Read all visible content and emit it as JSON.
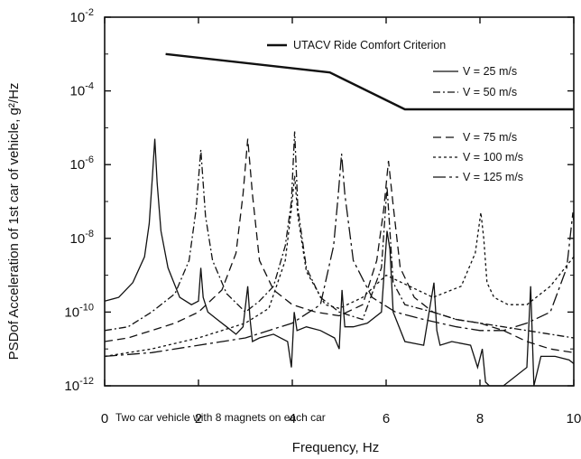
{
  "chart_data": {
    "type": "line",
    "xlabel": "Frequency, Hz",
    "ylabel": "PSDof Acceleration of 1st car of vehicle, g²/Hz",
    "x_ticks": [
      "0",
      "2",
      "4",
      "6",
      "8",
      "10"
    ],
    "y_ticks": [
      {
        "base": "10",
        "exp": "-2"
      },
      {
        "base": "10",
        "exp": "-4"
      },
      {
        "base": "10",
        "exp": "-6"
      },
      {
        "base": "10",
        "exp": "-8"
      },
      {
        "base": "10",
        "exp": "-10"
      },
      {
        "base": "10",
        "exp": "-12"
      }
    ],
    "xlim": [
      0,
      10
    ],
    "ylim_log10": [
      -12,
      -2
    ],
    "y_scale": "log",
    "grid": false,
    "legend_position": "top-right",
    "annotation": "Two car vehicle with 8 magnets on each car",
    "criterion": {
      "name": "UTACV Ride Comfort Criterion",
      "x": [
        1.3,
        4.8,
        6.4,
        10.0
      ],
      "log10_y": [
        -3.0,
        -3.5,
        -4.5,
        -4.5
      ]
    },
    "series": [
      {
        "name": "V = 25 m/s",
        "dash": "solid",
        "x": [
          0.0,
          0.3,
          0.6,
          0.85,
          0.95,
          1.02,
          1.07,
          1.12,
          1.2,
          1.35,
          1.6,
          1.85,
          2.0,
          2.05,
          2.1,
          2.2,
          2.4,
          2.6,
          2.8,
          2.95,
          3.05,
          3.1,
          3.15,
          3.3,
          3.6,
          3.9,
          3.98,
          4.04,
          4.1,
          4.3,
          4.6,
          4.9,
          5.0,
          5.06,
          5.12,
          5.3,
          5.6,
          5.9,
          6.02,
          6.08,
          6.15,
          6.4,
          6.8,
          7.02,
          7.08,
          7.15,
          7.4,
          7.8,
          7.95,
          8.05,
          8.12,
          8.2,
          8.5,
          9.0,
          9.08,
          9.15,
          9.3,
          9.6,
          9.9,
          10.0
        ],
        "log10_y": [
          -9.7,
          -9.6,
          -9.2,
          -8.5,
          -7.6,
          -6.3,
          -5.3,
          -6.5,
          -7.8,
          -8.8,
          -9.6,
          -9.8,
          -9.7,
          -8.8,
          -9.6,
          -10.0,
          -10.2,
          -10.4,
          -10.6,
          -10.4,
          -9.3,
          -10.2,
          -10.8,
          -10.7,
          -10.6,
          -10.8,
          -11.5,
          -10.0,
          -10.5,
          -10.4,
          -10.5,
          -10.7,
          -11.0,
          -9.4,
          -10.4,
          -10.4,
          -10.3,
          -10.0,
          -7.8,
          -8.3,
          -10.0,
          -10.8,
          -10.9,
          -9.2,
          -10.5,
          -10.9,
          -10.8,
          -10.9,
          -11.5,
          -11.0,
          -11.9,
          -12.0,
          -12.0,
          -11.5,
          -9.3,
          -12.0,
          -11.2,
          -11.2,
          -11.3,
          -11.4
        ]
      },
      {
        "name": "V = 50 m/s",
        "dash": "8,3,2,3",
        "x": [
          0.0,
          0.5,
          1.0,
          1.5,
          1.8,
          1.95,
          2.05,
          2.15,
          2.3,
          2.6,
          3.0,
          3.3,
          3.6,
          3.85,
          3.98,
          4.05,
          4.12,
          4.3,
          4.6,
          5.0,
          5.5,
          5.9,
          6.02,
          6.08,
          6.15,
          6.4,
          7.0,
          7.5,
          8.0,
          8.5,
          9.0,
          9.5,
          10.0
        ],
        "log10_y": [
          -10.5,
          -10.4,
          -10.0,
          -9.5,
          -8.6,
          -7.2,
          -5.6,
          -7.4,
          -8.6,
          -9.5,
          -10.0,
          -9.7,
          -9.3,
          -8.2,
          -7.0,
          -5.1,
          -7.2,
          -8.8,
          -9.6,
          -10.0,
          -10.2,
          -8.8,
          -6.6,
          -7.8,
          -9.2,
          -9.8,
          -10.0,
          -10.2,
          -10.3,
          -10.4,
          -10.5,
          -10.6,
          -10.7
        ]
      },
      {
        "name": "V = 75 m/s",
        "dash": "9,5",
        "x": [
          0.0,
          0.5,
          1.0,
          1.5,
          2.0,
          2.5,
          2.8,
          2.95,
          3.05,
          3.15,
          3.3,
          3.6,
          4.0,
          4.5,
          5.0,
          5.5,
          5.8,
          5.95,
          6.05,
          6.15,
          6.3,
          6.6,
          7.0,
          7.5,
          8.0,
          8.5,
          9.0,
          9.5,
          10.0
        ],
        "log10_y": [
          -10.8,
          -10.7,
          -10.5,
          -10.3,
          -10.0,
          -9.4,
          -8.4,
          -6.8,
          -5.3,
          -6.8,
          -8.6,
          -9.4,
          -9.8,
          -10.0,
          -10.1,
          -9.8,
          -8.6,
          -7.2,
          -5.9,
          -7.1,
          -8.8,
          -9.6,
          -10.0,
          -10.2,
          -10.3,
          -10.5,
          -10.8,
          -11.0,
          -11.1
        ]
      },
      {
        "name": "V = 100 m/s",
        "dash": "3,3",
        "x": [
          0.0,
          1.0,
          2.0,
          3.0,
          3.5,
          3.85,
          3.98,
          4.05,
          4.12,
          4.3,
          4.7,
          5.0,
          5.5,
          6.0,
          7.0,
          7.6,
          7.9,
          8.02,
          8.08,
          8.15,
          8.3,
          8.6,
          9.0,
          9.5,
          10.0
        ],
        "log10_y": [
          -11.2,
          -11.0,
          -10.7,
          -10.3,
          -9.9,
          -8.6,
          -7.2,
          -6.3,
          -7.4,
          -8.9,
          -9.8,
          -9.9,
          -9.6,
          -9.0,
          -9.6,
          -9.3,
          -8.4,
          -7.3,
          -8.0,
          -9.2,
          -9.6,
          -9.8,
          -9.8,
          -9.3,
          -8.5
        ]
      },
      {
        "name": "V = 125 m/s",
        "dash": "14,4,3,4",
        "x": [
          0.0,
          1.0,
          2.0,
          3.0,
          4.0,
          4.6,
          4.88,
          4.98,
          5.05,
          5.12,
          5.3,
          5.7,
          6.2,
          6.8,
          7.5,
          8.0,
          8.5,
          9.0,
          9.5,
          9.85,
          9.98,
          10.0
        ],
        "log10_y": [
          -11.2,
          -11.1,
          -10.9,
          -10.7,
          -10.3,
          -9.8,
          -8.2,
          -6.8,
          -5.7,
          -6.8,
          -8.6,
          -9.6,
          -10.0,
          -10.2,
          -10.4,
          -10.5,
          -10.5,
          -10.3,
          -10.0,
          -8.8,
          -7.3,
          -7.6
        ]
      }
    ]
  }
}
